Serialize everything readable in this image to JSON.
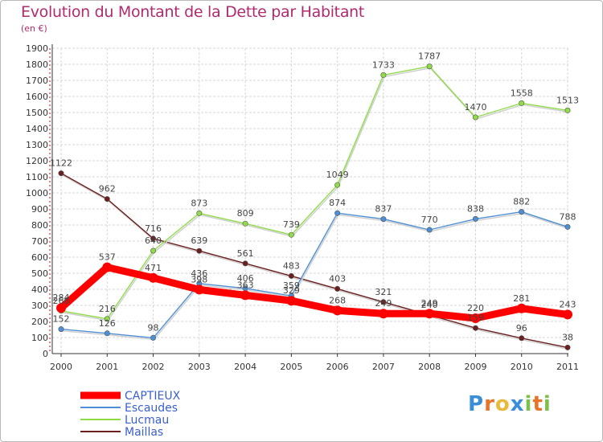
{
  "chart_data": {
    "type": "line",
    "title": "Evolution du Montant de la Dette par Habitant",
    "subtitle": "(en €)",
    "x": [
      "2000",
      "2001",
      "2002",
      "2003",
      "2004",
      "2005",
      "2006",
      "2007",
      "2008",
      "2009",
      "2010",
      "2011"
    ],
    "ylim": [
      0,
      1900
    ],
    "yticks": [
      0,
      100,
      200,
      300,
      400,
      500,
      600,
      700,
      800,
      900,
      1000,
      1100,
      1200,
      1300,
      1400,
      1500,
      1600,
      1700,
      1800,
      1900
    ],
    "grid": true,
    "legend_position": "bottom-left",
    "series": [
      {
        "name": "CAPTIEUX",
        "color": "#ff0000",
        "values": [
          284,
          537,
          471,
          398,
          363,
          329,
          268,
          249,
          249,
          220,
          281,
          243
        ]
      },
      {
        "name": "Escaudes",
        "color": "#4d8fd4",
        "values": [
          152,
          126,
          98,
          436,
          406,
          359,
          874,
          837,
          770,
          838,
          882,
          788
        ]
      },
      {
        "name": "Lucmau",
        "color": "#8fdc48",
        "values": [
          266,
          216,
          640,
          873,
          809,
          739,
          1049,
          1733,
          1787,
          1470,
          1558,
          1513
        ]
      },
      {
        "name": "Maillas",
        "color": "#6b1f1f",
        "values": [
          1122,
          962,
          716,
          639,
          561,
          483,
          403,
          321,
          240,
          159,
          96,
          38
        ]
      }
    ]
  },
  "logo": {
    "text": "Proxiti",
    "letters": [
      "P",
      "r",
      "o",
      "x",
      "i",
      "t",
      "i"
    ],
    "colors": [
      "#3a8ed8",
      "#e8742a",
      "#e8b93a",
      "#3a8ed8",
      "#7cc04a",
      "#e8742a",
      "#7cc04a"
    ]
  }
}
